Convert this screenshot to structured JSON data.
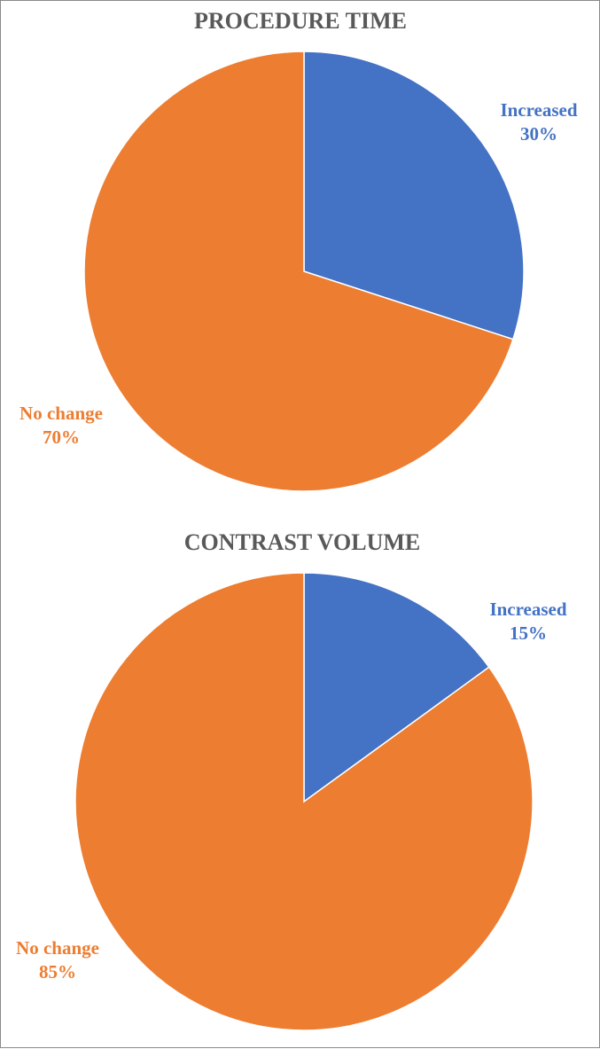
{
  "chart_data": [
    {
      "type": "pie",
      "title": "PROCEDURE TIME",
      "slices": [
        {
          "label": "Increased",
          "value": 30,
          "value_label": "30%",
          "color": "#4472C4"
        },
        {
          "label": "No change",
          "value": 70,
          "value_label": "70%",
          "color": "#ED7D31"
        }
      ]
    },
    {
      "type": "pie",
      "title": "CONTRAST VOLUME",
      "slices": [
        {
          "label": "Increased",
          "value": 15,
          "value_label": "15%",
          "color": "#4472C4"
        },
        {
          "label": "No change",
          "value": 85,
          "value_label": "85%",
          "color": "#ED7D31"
        }
      ]
    }
  ]
}
